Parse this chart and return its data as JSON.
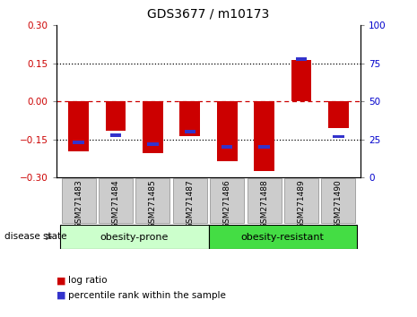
{
  "title": "GDS3677 / m10173",
  "samples": [
    "GSM271483",
    "GSM271484",
    "GSM271485",
    "GSM271487",
    "GSM271486",
    "GSM271488",
    "GSM271489",
    "GSM271490"
  ],
  "log_ratios": [
    -0.195,
    -0.115,
    -0.205,
    -0.135,
    -0.235,
    -0.275,
    0.165,
    -0.105
  ],
  "percentile_ranks": [
    23,
    28,
    22,
    30,
    20,
    20,
    78,
    27
  ],
  "ylim_left": [
    -0.3,
    0.3
  ],
  "ylim_right": [
    0,
    100
  ],
  "yticks_left": [
    -0.3,
    -0.15,
    0,
    0.15,
    0.3
  ],
  "yticks_right": [
    0,
    25,
    50,
    75,
    100
  ],
  "bar_color_red": "#cc0000",
  "bar_color_blue": "#3333cc",
  "zero_line_color": "#cc0000",
  "dotted_line_color": "#000000",
  "group1_label": "obesity-prone",
  "group2_label": "obesity-resistant",
  "group1_indices": [
    0,
    1,
    2,
    3
  ],
  "group2_indices": [
    4,
    5,
    6,
    7
  ],
  "group1_color": "#ccffcc",
  "group2_color": "#44dd44",
  "disease_state_label": "disease state",
  "legend_red": "log ratio",
  "legend_blue": "percentile rank within the sample",
  "bar_width": 0.55,
  "tick_label_color_left": "#cc0000",
  "tick_label_color_right": "#0000cc",
  "sample_box_color": "#cccccc",
  "title_fontsize": 10
}
